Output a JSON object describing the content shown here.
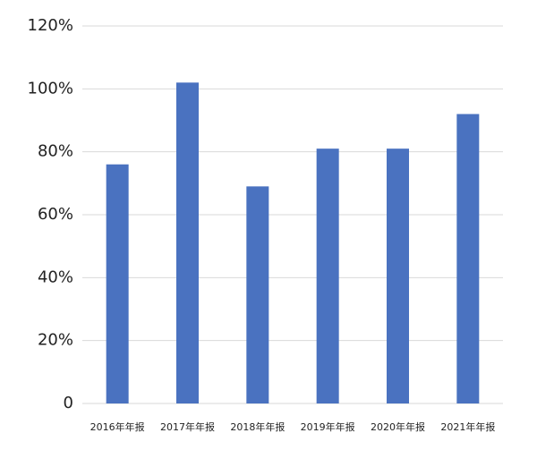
{
  "chart_data": {
    "type": "bar",
    "categories": [
      "2016年年报",
      "2017年年报",
      "2018年年报",
      "2019年年报",
      "2020年年报",
      "2021年年报"
    ],
    "values": [
      76,
      102,
      69,
      81,
      81,
      92
    ],
    "color": "#4a72c0",
    "ylim": [
      0,
      120
    ],
    "yticks": [
      0,
      {
        "value": 20,
        "label": "20%"
      },
      {
        "value": 40,
        "label": "40%"
      },
      {
        "value": 60,
        "label": "60%"
      },
      {
        "value": 80,
        "label": "80%"
      },
      {
        "value": 100,
        "label": "100%"
      },
      {
        "value": 120,
        "label": "120%"
      }
    ],
    "grid": true
  }
}
